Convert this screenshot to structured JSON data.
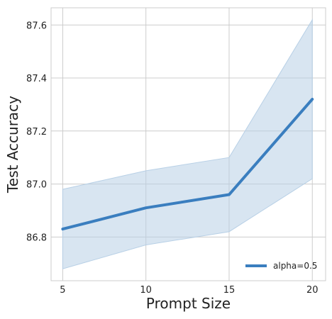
{
  "chart_data": {
    "type": "line",
    "x": [
      5,
      10,
      15,
      20
    ],
    "xlabel": "Prompt Size",
    "ylabel": "Test Accuracy",
    "xlim": [
      4.3,
      20.8
    ],
    "ylim": [
      86.635,
      87.665
    ],
    "x_ticks": [
      5,
      10,
      15,
      20
    ],
    "y_ticks": [
      86.8,
      87.0,
      87.2,
      87.4,
      87.6
    ],
    "y_tick_labels": [
      "86.8",
      "87.0",
      "87.2",
      "87.4",
      "87.6"
    ],
    "grid": true,
    "legend_position": "bottom-right",
    "series": [
      {
        "name": "alpha=0.5",
        "values": [
          86.83,
          86.91,
          86.96,
          87.32
        ],
        "lower": [
          86.68,
          86.77,
          86.82,
          87.02
        ],
        "upper": [
          86.98,
          87.05,
          87.1,
          87.62
        ],
        "color": "#3a7ebf",
        "band_color": "#b8d0e6"
      }
    ]
  }
}
